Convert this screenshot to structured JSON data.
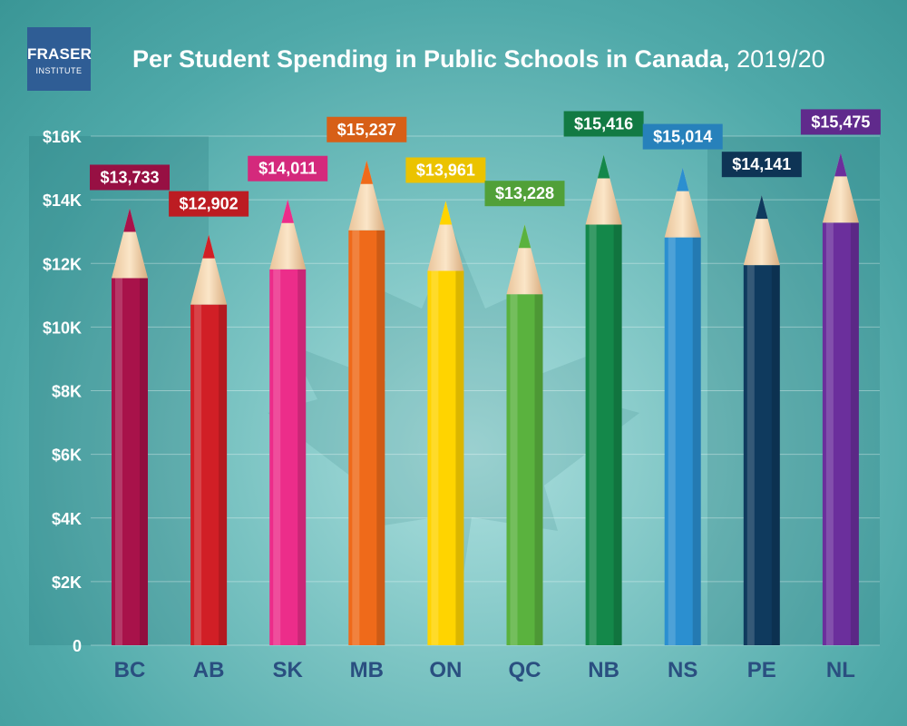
{
  "logo": {
    "line1": "FRASER",
    "line2": "INSTITUTE"
  },
  "title": {
    "main": "Per Student Spending in Public Schools in Canada,",
    "year": "2019/20"
  },
  "colors": {
    "axis_text": "#2a4f80",
    "category_text": "#2a4f80",
    "BC": "#a8124a",
    "AB": "#d11f26",
    "SK": "#ec2d8a",
    "MB": "#ef6a1a",
    "ON": "#ffd400",
    "QC": "#5ab23e",
    "NB": "#14884a",
    "NS": "#2b8fd0",
    "PE": "#0f3a5e",
    "NL": "#6b2f9c"
  },
  "chart_data": {
    "type": "bar",
    "title": "Per Student Spending in Public Schools in Canada, 2019/20",
    "xlabel": "",
    "ylabel": "",
    "categories": [
      "BC",
      "AB",
      "SK",
      "MB",
      "ON",
      "QC",
      "NB",
      "NS",
      "PE",
      "NL"
    ],
    "values": [
      13733,
      12902,
      14011,
      15237,
      13961,
      13228,
      15416,
      15014,
      14141,
      15475
    ],
    "value_labels": [
      "$13,733",
      "$12,902",
      "$14,011",
      "$15,237",
      "$13,961",
      "$13,228",
      "$15,416",
      "$15,014",
      "$14,141",
      "$15,475"
    ],
    "ylim": [
      0,
      16000
    ],
    "yticks": [
      0,
      2000,
      4000,
      6000,
      8000,
      10000,
      12000,
      14000,
      16000
    ],
    "ytick_labels": [
      "0",
      "$2K",
      "$4K",
      "$6K",
      "$8K",
      "$10K",
      "$12K",
      "$14K",
      "$16K"
    ],
    "grid": true,
    "legend": "none"
  }
}
